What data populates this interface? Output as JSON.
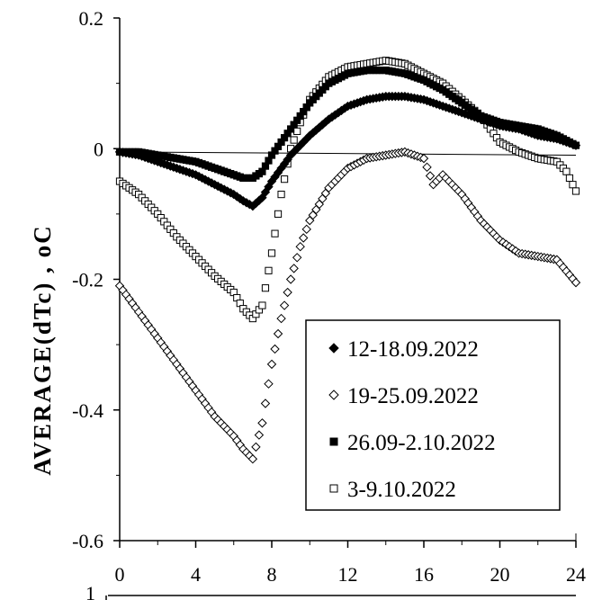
{
  "chart_data": {
    "type": "scatter",
    "ylabel": "AVERAGE(dTc) , oC",
    "xlabel": "",
    "xlim": [
      0,
      24
    ],
    "ylim": [
      -0.6,
      0.2
    ],
    "x_ticks": [
      "0",
      "4",
      "8",
      "12",
      "16",
      "20",
      "24"
    ],
    "y_ticks": [
      "0.2",
      "0",
      "-0.2",
      "-0.4",
      "-0.6"
    ],
    "bottom_partial_tick": "1",
    "reference_line": {
      "x": [
        0,
        24
      ],
      "y": [
        -0.005,
        -0.01
      ]
    },
    "legend_position": "center-right",
    "series": [
      {
        "name": "12-18.09.2022",
        "marker": "diamond-filled",
        "x": [
          0,
          1,
          2,
          3,
          4,
          5,
          6,
          6.5,
          7,
          7.5,
          8,
          9,
          10,
          11,
          12,
          13,
          14,
          15,
          16,
          17,
          18,
          19,
          20,
          21,
          22,
          23,
          24
        ],
        "y": [
          -0.005,
          -0.01,
          -0.02,
          -0.03,
          -0.04,
          -0.055,
          -0.07,
          -0.08,
          -0.088,
          -0.075,
          -0.05,
          -0.01,
          0.02,
          0.045,
          0.065,
          0.075,
          0.08,
          0.08,
          0.075,
          0.065,
          0.055,
          0.045,
          0.035,
          0.03,
          0.02,
          0.015,
          0.005
        ]
      },
      {
        "name": "19-25.09.2022",
        "marker": "diamond-open",
        "x": [
          0,
          1,
          2,
          3,
          4,
          5,
          6,
          6.5,
          7,
          7.5,
          8,
          8.5,
          9,
          9.5,
          10,
          11,
          12,
          13,
          14,
          15,
          16,
          16.5,
          17,
          18,
          19,
          20,
          21,
          22,
          23,
          24
        ],
        "y": [
          -0.21,
          -0.25,
          -0.29,
          -0.33,
          -0.37,
          -0.41,
          -0.44,
          -0.46,
          -0.475,
          -0.42,
          -0.33,
          -0.26,
          -0.2,
          -0.15,
          -0.11,
          -0.06,
          -0.03,
          -0.015,
          -0.01,
          -0.005,
          -0.015,
          -0.055,
          -0.04,
          -0.07,
          -0.11,
          -0.14,
          -0.16,
          -0.165,
          -0.17,
          -0.205
        ]
      },
      {
        "name": "26.09-2.10.2022",
        "marker": "square-filled",
        "x": [
          0,
          1,
          2,
          3,
          4,
          5,
          6,
          6.5,
          7,
          7.5,
          8,
          9,
          10,
          11,
          12,
          13,
          14,
          15,
          16,
          17,
          18,
          19,
          20,
          21,
          22,
          23,
          24
        ],
        "y": [
          -0.005,
          -0.005,
          -0.01,
          -0.015,
          -0.02,
          -0.03,
          -0.04,
          -0.045,
          -0.045,
          -0.035,
          -0.01,
          0.03,
          0.07,
          0.1,
          0.115,
          0.12,
          0.12,
          0.115,
          0.105,
          0.09,
          0.07,
          0.05,
          0.04,
          0.035,
          0.03,
          0.02,
          0.005
        ]
      },
      {
        "name": "3-9.10.2022",
        "marker": "square-open",
        "x": [
          0,
          1,
          2,
          3,
          4,
          5,
          6,
          6.5,
          7,
          7.5,
          8,
          8.5,
          9,
          9.5,
          10,
          11,
          12,
          13,
          14,
          15,
          16,
          17,
          18,
          19,
          20,
          21,
          22,
          23,
          23.5,
          24
        ],
        "y": [
          -0.05,
          -0.07,
          -0.1,
          -0.135,
          -0.165,
          -0.195,
          -0.22,
          -0.245,
          -0.26,
          -0.24,
          -0.16,
          -0.07,
          0.0,
          0.04,
          0.075,
          0.11,
          0.125,
          0.13,
          0.135,
          0.13,
          0.115,
          0.1,
          0.075,
          0.05,
          0.01,
          -0.005,
          -0.015,
          -0.02,
          -0.035,
          -0.065
        ]
      }
    ]
  }
}
